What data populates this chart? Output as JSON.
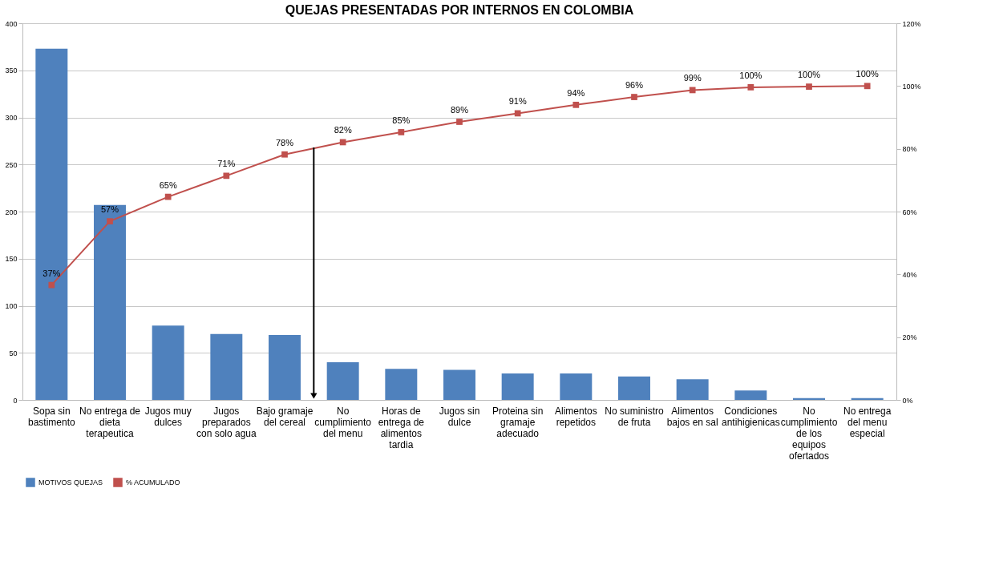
{
  "chart_data": {
    "type": "bar",
    "title": "QUEJAS PRESENTADAS POR INTERNOS EN COLOMBIA",
    "categories": [
      "Sopa sin bastimento",
      "No entrega de dieta terapeutica",
      "Jugos muy dulces",
      "Jugos preparados con solo agua",
      "Bajo gramaje del cereal",
      "No cumplimiento del menu",
      "Horas de entrega de alimentos tardia",
      "Jugos sin dulce",
      "Proteina sin gramaje adecuado",
      "Alimentos repetidos",
      "No suministro de fruta",
      "Alimentos bajos en sal",
      "Condiciones antihigienicas",
      "No cumplimiento de los equipos ofertados",
      "No entrega del menu especial"
    ],
    "series": [
      {
        "name": "MOTIVOS QUEJAS",
        "color": "#4f81bd",
        "values": [
          373,
          207,
          79,
          70,
          69,
          40,
          33,
          32,
          28,
          28,
          25,
          22,
          10,
          2,
          2
        ]
      },
      {
        "name": "% ACUMULADO",
        "color": "#c0504d",
        "type": "line",
        "axis": "y2",
        "marker": "square",
        "values": [
          36.6,
          56.9,
          64.7,
          71.4,
          78.2,
          82.1,
          85.3,
          88.6,
          91.3,
          94.0,
          96.5,
          98.7,
          99.6,
          99.8,
          100
        ],
        "value_labels": [
          "37%",
          "57%",
          "65%",
          "71%",
          "78%",
          "82%",
          "85%",
          "89%",
          "91%",
          "94%",
          "96%",
          "99%",
          "100%",
          "100%",
          "100%"
        ]
      }
    ],
    "ylim": [
      0,
      400
    ],
    "yticks": [
      0,
      50,
      100,
      150,
      200,
      250,
      300,
      350,
      400
    ],
    "y2lim": [
      0,
      120
    ],
    "y2ticks": [
      {
        "value": 0,
        "label": "0%"
      },
      {
        "value": 20,
        "label": "20%"
      },
      {
        "value": 40,
        "label": "40%"
      },
      {
        "value": 60,
        "label": "60%"
      },
      {
        "value": 80,
        "label": "80%"
      },
      {
        "value": 100,
        "label": "100%"
      },
      {
        "value": 120,
        "label": "120%"
      }
    ],
    "grid": "y",
    "legend": "bottom"
  }
}
